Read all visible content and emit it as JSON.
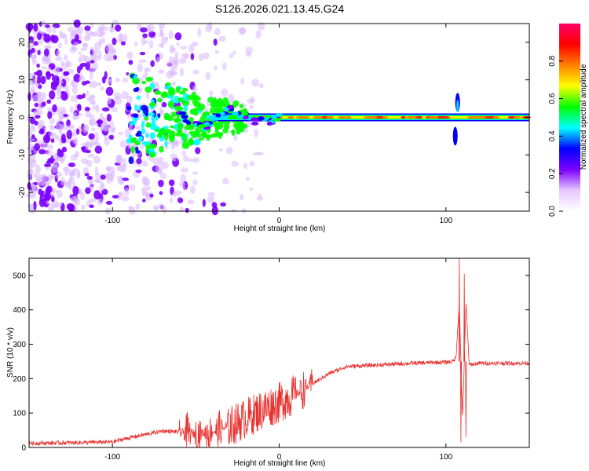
{
  "chart_data": [
    {
      "type": "heatmap",
      "title": "S126.2026.021.13.45.G24",
      "xlabel": "Height of straight line (km)",
      "ylabel": "Frequency (Hz)",
      "xlim": [
        -150,
        150
      ],
      "ylim": [
        -25,
        25
      ],
      "x_ticks": [
        -100,
        0,
        100
      ],
      "y_ticks": [
        -20,
        -10,
        0,
        10,
        20
      ],
      "grid": false,
      "colorbar": {
        "label": "Normalized spectral amplitude",
        "range": [
          0,
          1
        ],
        "ticks": [
          0.0,
          0.2,
          0.4,
          0.6,
          0.8
        ],
        "colormap": [
          "#ffffff",
          "#e8c8ff",
          "#7b00ff",
          "#0000ff",
          "#00ffff",
          "#00ff00",
          "#ffff00",
          "#ff8000",
          "#ff0000",
          "#ff0066"
        ]
      },
      "ridge": {
        "frequency": 0,
        "x_range": [
          -40,
          150
        ],
        "disturbance_x": 107,
        "disturbance_freq_range": [
          -8,
          7
        ]
      },
      "noise_region": {
        "x_range": [
          -150,
          -40
        ],
        "freq_range": [
          -25,
          25
        ]
      }
    },
    {
      "type": "line",
      "xlabel": "Height of straight line (km)",
      "ylabel": "SNR (10 * v/v)",
      "xlim": [
        -150,
        150
      ],
      "ylim": [
        0,
        550
      ],
      "x_ticks": [
        -100,
        0,
        100
      ],
      "y_ticks": [
        0,
        100,
        200,
        300,
        400,
        500
      ],
      "grid": false,
      "series_color": "#e8322f",
      "trend": {
        "x": [
          -150,
          -120,
          -100,
          -90,
          -80,
          -70,
          -60,
          -50,
          -40,
          -30,
          -20,
          -10,
          0,
          10,
          20,
          30,
          40,
          60,
          80,
          100,
          104,
          106,
          108,
          110,
          112,
          114,
          120,
          150
        ],
        "y": [
          12,
          14,
          16,
          28,
          38,
          48,
          45,
          40,
          45,
          60,
          85,
          110,
          130,
          155,
          185,
          215,
          235,
          240,
          245,
          248,
          250,
          260,
          420,
          80,
          420,
          240,
          245,
          245
        ]
      },
      "spikes": [
        {
          "x": 108,
          "y": 555
        },
        {
          "x": 109,
          "y": 15
        },
        {
          "x": 111,
          "y": 505
        },
        {
          "x": 112,
          "y": 30
        }
      ]
    }
  ]
}
